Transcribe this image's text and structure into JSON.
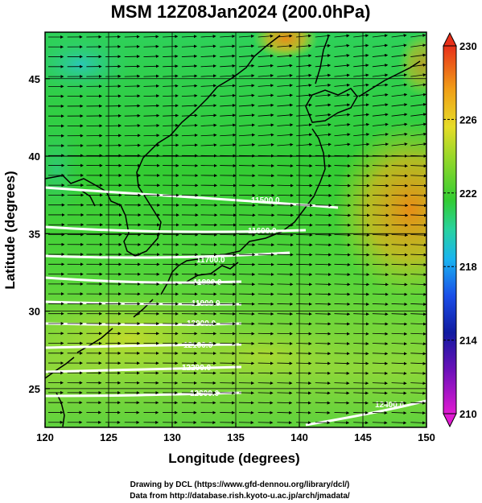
{
  "title": "MSM 12Z08Jan2024 (200.0hPa)",
  "x_axis": {
    "label": "Longitude (degrees)",
    "ticks": [
      "120",
      "125",
      "130",
      "135",
      "140",
      "145",
      "150"
    ]
  },
  "y_axis": {
    "label": "Latitude  (degrees)",
    "ticks": [
      "25",
      "30",
      "35",
      "40",
      "45"
    ]
  },
  "colorbar": {
    "ticks": [
      "230",
      "226",
      "222",
      "218",
      "214",
      "210"
    ]
  },
  "contour_labels": [
    "11500.0",
    "11600.0",
    "11700.0",
    "11800.0",
    "11900.0",
    "12000.0",
    "12100.0",
    "12200.0",
    "12300.0",
    "12400.0"
  ],
  "footer": {
    "line1": "Drawing by DCL (https://www.gfd-dennou.org/library/dcl/)",
    "line2": "Data from http://database.rish.kyoto-u.ac.jp/arch/jmadata/"
  },
  "map": {
    "lon_range": [
      120,
      150
    ],
    "lat_range": [
      22.5,
      48
    ],
    "colorscale_range": [
      210,
      230
    ],
    "vector_field": "westerly wind, arrows pointing east"
  },
  "colors": {
    "field_base": "#33cc33",
    "field_warm": "#e69a1a",
    "field_cool": "#2ec4c4",
    "field_yellow": "#c8dc2a",
    "contour": "#ffffff",
    "arrow": "#000000"
  }
}
